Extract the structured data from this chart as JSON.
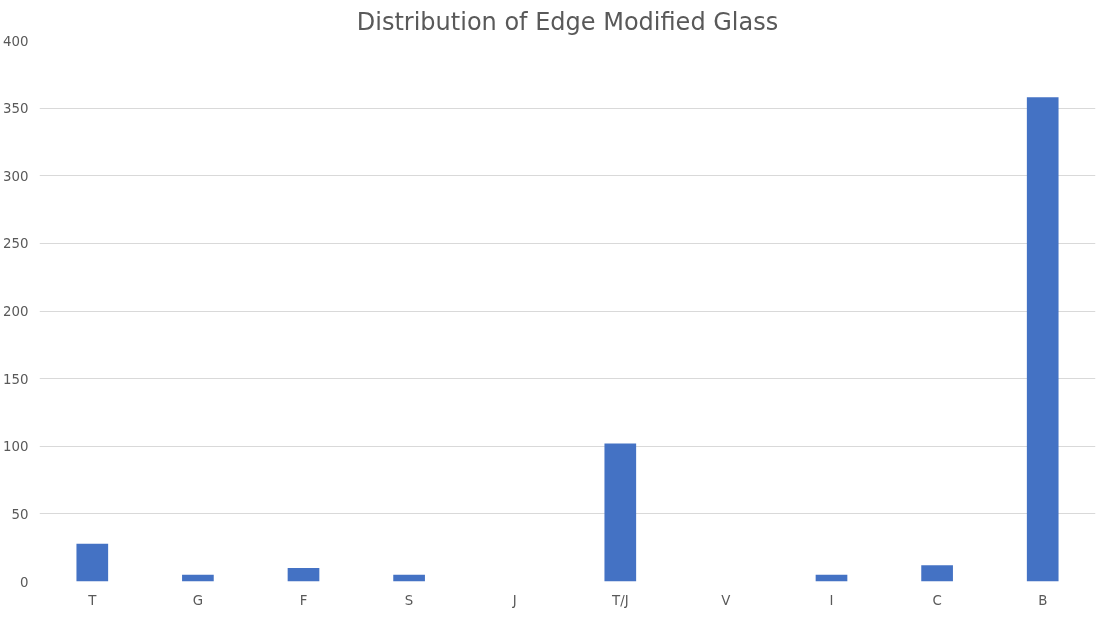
{
  "chart_data": {
    "type": "bar",
    "title": "Distribution of Edge Modified Glass",
    "categories": [
      "T",
      "G",
      "F",
      "S",
      "J",
      "T/J",
      "V",
      "I",
      "C",
      "B"
    ],
    "values": [
      28,
      5,
      10,
      5,
      0,
      102,
      0,
      5,
      12,
      358
    ],
    "color": "#4472c4",
    "ylim": [
      0,
      400
    ],
    "yticks": [
      0,
      50,
      100,
      150,
      200,
      250,
      300,
      350,
      400
    ],
    "grid": "y"
  }
}
